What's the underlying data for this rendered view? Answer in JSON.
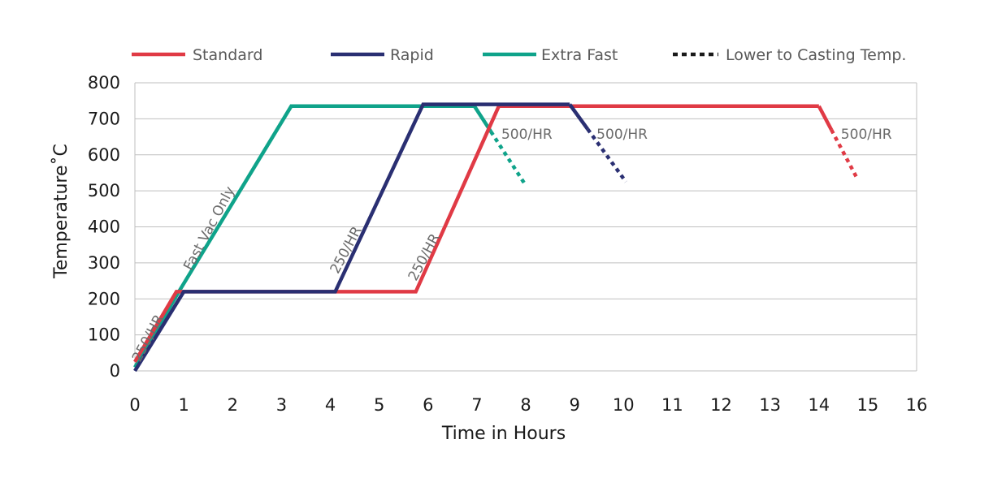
{
  "chart_data": {
    "type": "line",
    "xlabel": "Time in Hours",
    "ylabel": "Temperature˚C",
    "xlim": [
      0,
      16
    ],
    "ylim": [
      0,
      800
    ],
    "x_ticks": [
      "0",
      "1",
      "2",
      "3",
      "4",
      "5",
      "6",
      "7",
      "8",
      "9",
      "10",
      "11",
      "12",
      "13",
      "14",
      "15",
      "16"
    ],
    "y_ticks": [
      "800",
      "700",
      "600",
      "500",
      "400",
      "300",
      "200",
      "100",
      "0"
    ],
    "grid": "horizontal",
    "legend_position": "top",
    "legend": [
      {
        "label": "Standard",
        "color": "#e03a45",
        "style": "solid"
      },
      {
        "label": "Rapid",
        "color": "#2a2f72",
        "style": "solid"
      },
      {
        "label": "Extra Fast",
        "color": "#0fa38a",
        "style": "solid"
      },
      {
        "label": "Lower to Casting Temp.",
        "color": "#1a1a1a",
        "style": "dotted"
      }
    ],
    "series": [
      {
        "name": "Standard",
        "color": "#e03a45",
        "points": [
          [
            0,
            25
          ],
          [
            0.85,
            220
          ],
          [
            5.75,
            220
          ],
          [
            7.45,
            735
          ],
          [
            14,
            735
          ]
        ],
        "cooldown": [
          [
            14,
            735
          ],
          [
            14.8,
            530
          ]
        ]
      },
      {
        "name": "Rapid",
        "color": "#2a2f72",
        "points": [
          [
            0,
            0
          ],
          [
            1,
            220
          ],
          [
            4.1,
            220
          ],
          [
            5.9,
            740
          ],
          [
            8.9,
            740
          ]
        ],
        "cooldown": [
          [
            8.9,
            740
          ],
          [
            10.05,
            525
          ]
        ]
      },
      {
        "name": "Extra Fast",
        "color": "#0fa38a",
        "points": [
          [
            0,
            10
          ],
          [
            0.9,
            220
          ],
          [
            3.2,
            735
          ],
          [
            6.95,
            735
          ]
        ],
        "cooldown": [
          [
            6.95,
            735
          ],
          [
            8.0,
            515
          ]
        ]
      }
    ],
    "annotations": [
      {
        "text": "250/HR",
        "x": 0.35,
        "y": 85,
        "angle": -62
      },
      {
        "text": "Fast Vac Only",
        "x": 1.6,
        "y": 390,
        "angle": -62
      },
      {
        "text": "250/HR",
        "x": 4.4,
        "y": 330,
        "angle": -62
      },
      {
        "text": "250/HR",
        "x": 6.0,
        "y": 310,
        "angle": -62
      },
      {
        "text": "500/HR",
        "x": 7.5,
        "y": 645,
        "angle": 0
      },
      {
        "text": "500/HR",
        "x": 9.45,
        "y": 645,
        "angle": 0
      },
      {
        "text": "500/HR",
        "x": 14.45,
        "y": 645,
        "angle": 0
      }
    ]
  }
}
